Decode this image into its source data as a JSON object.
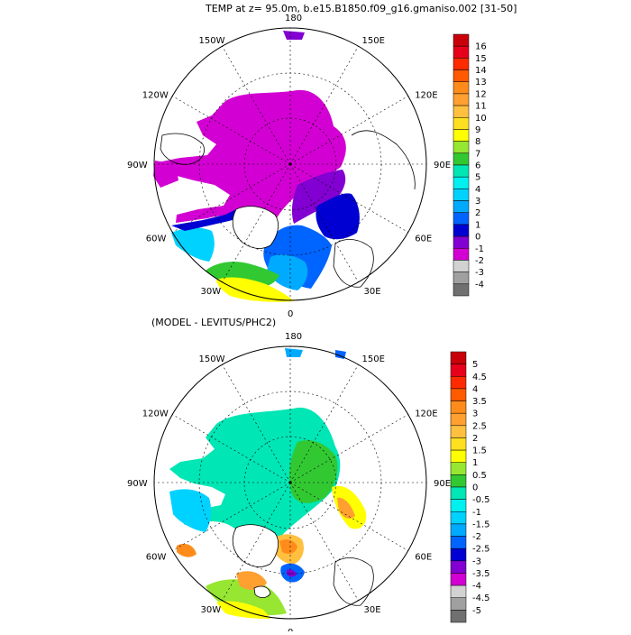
{
  "top_plot": {
    "title": "TEMP at z=  95.0m, b.e15.B1850.f09_g16.gmaniso.002 [31-50]",
    "lon_labels": [
      "180",
      "150E",
      "120E",
      "90E",
      "60E",
      "30E",
      "0",
      "30W",
      "60W",
      "90W",
      "120W",
      "150W"
    ],
    "colorbar": {
      "labels": [
        "16",
        "15",
        "14",
        "13",
        "12",
        "11",
        "10",
        "9",
        "8",
        "7",
        "6",
        "5",
        "4",
        "3",
        "2",
        "1",
        "0",
        "-1",
        "-2",
        "-3",
        "-4"
      ],
      "colors": [
        "#c8000a",
        "#e6001c",
        "#ff2a00",
        "#ff5a00",
        "#ff8c1a",
        "#ffa030",
        "#ffc040",
        "#ffe020",
        "#ffff00",
        "#96e632",
        "#32c832",
        "#00e6b4",
        "#00f0f0",
        "#00d2ff",
        "#00aaff",
        "#0064ff",
        "#0000d2",
        "#8200d2",
        "#d200d2",
        "#d2d2d2",
        "#a0a0a0",
        "#707070"
      ]
    }
  },
  "bottom_plot": {
    "title": "(MODEL - LEVITUS/PHC2)",
    "lon_labels": [
      "180",
      "150E",
      "120E",
      "90E",
      "60E",
      "30E",
      "0",
      "30W",
      "60W",
      "90W",
      "120W",
      "150W"
    ],
    "colorbar": {
      "labels": [
        "5",
        "4.5",
        "4",
        "3.5",
        "3",
        "2.5",
        "2",
        "1.5",
        "1",
        "0.5",
        "0",
        "-0.5",
        "-1",
        "-1.5",
        "-2",
        "-2.5",
        "-3",
        "-3.5",
        "-4",
        "-4.5",
        "-5"
      ],
      "colors": [
        "#c8000a",
        "#e6001c",
        "#ff2a00",
        "#ff5a00",
        "#ff8c1a",
        "#ffa030",
        "#ffc040",
        "#ffe020",
        "#ffff00",
        "#96e632",
        "#32c832",
        "#00e6b4",
        "#00f0f0",
        "#00d2ff",
        "#00aaff",
        "#0064ff",
        "#0000d2",
        "#8200d2",
        "#d200d2",
        "#d2d2d2",
        "#a0a0a0",
        "#707070"
      ]
    }
  },
  "chart_data": [
    {
      "type": "heatmap",
      "projection": "north polar stereographic",
      "title": "TEMP at z=  95.0m, b.e15.B1850.f09_g16.gmaniso.002 [31-50]",
      "variable": "TEMP",
      "depth_m": 95.0,
      "case": "b.e15.B1850.f09_g16.gmaniso.002",
      "years": "31-50",
      "levels": [
        -4,
        -3,
        -2,
        -1,
        0,
        1,
        2,
        3,
        4,
        5,
        6,
        7,
        8,
        9,
        10,
        11,
        12,
        13,
        14,
        15,
        16
      ],
      "lon_labels": [
        "180",
        "150E",
        "120E",
        "90E",
        "60E",
        "30E",
        "0",
        "30W",
        "60W",
        "90W",
        "120W",
        "150W"
      ]
    },
    {
      "type": "heatmap",
      "projection": "north polar stereographic",
      "title": "(MODEL - LEVITUS/PHC2)",
      "levels": [
        -5,
        -4.5,
        -4,
        -3.5,
        -3,
        -2.5,
        -2,
        -1.5,
        -1,
        -0.5,
        0,
        0.5,
        1,
        1.5,
        2,
        2.5,
        3,
        3.5,
        4,
        4.5,
        5
      ],
      "lon_labels": [
        "180",
        "150E",
        "120E",
        "90E",
        "60E",
        "30E",
        "0",
        "30W",
        "60W",
        "90W",
        "120W",
        "150W"
      ]
    }
  ]
}
